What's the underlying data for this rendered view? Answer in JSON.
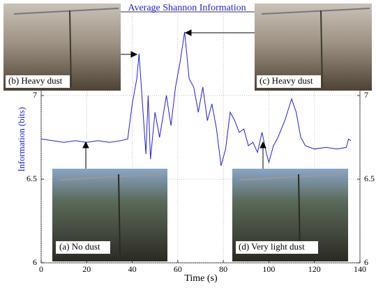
{
  "chart_data": {
    "type": "line",
    "title": "Average Shannon Information",
    "x_label": "Time (s)",
    "y_label": "Information (bits)",
    "x": [
      0,
      5,
      10,
      15,
      20,
      25,
      30,
      35,
      38,
      40,
      42,
      43,
      44,
      46,
      47,
      48,
      50,
      52,
      55,
      57,
      59,
      61,
      63,
      65,
      67,
      69,
      71,
      73,
      75,
      77,
      79,
      81,
      83,
      85,
      87,
      89,
      91,
      93,
      95,
      97,
      99,
      100,
      102,
      104,
      107,
      110,
      112,
      114,
      116,
      120,
      125,
      130,
      134,
      135,
      136
    ],
    "values": [
      6.74,
      6.73,
      6.72,
      6.73,
      6.72,
      6.73,
      6.72,
      6.73,
      6.74,
      6.95,
      7.1,
      7.25,
      7.05,
      6.65,
      7.0,
      6.62,
      6.9,
      6.75,
      7.0,
      6.82,
      7.05,
      7.2,
      7.38,
      7.1,
      7.05,
      6.9,
      7.05,
      6.85,
      6.95,
      6.8,
      6.58,
      6.68,
      6.9,
      6.85,
      6.78,
      6.8,
      6.7,
      6.72,
      6.66,
      6.78,
      6.65,
      6.6,
      6.7,
      6.75,
      6.85,
      6.98,
      6.9,
      6.75,
      6.7,
      6.68,
      6.69,
      6.68,
      6.69,
      6.74,
      6.73
    ],
    "color": "#1f1fe0",
    "xlim": [
      0,
      140
    ],
    "xticks": [
      0,
      20,
      40,
      60,
      80,
      100,
      120,
      140
    ],
    "ylim": [
      6,
      7.5
    ],
    "yticks": [
      6,
      6.5,
      7
    ],
    "grid": true,
    "annotations": [
      "(b) Heavy dust",
      "(c) Heavy dust",
      "(a) No dust",
      "(d) Very light dust"
    ]
  }
}
